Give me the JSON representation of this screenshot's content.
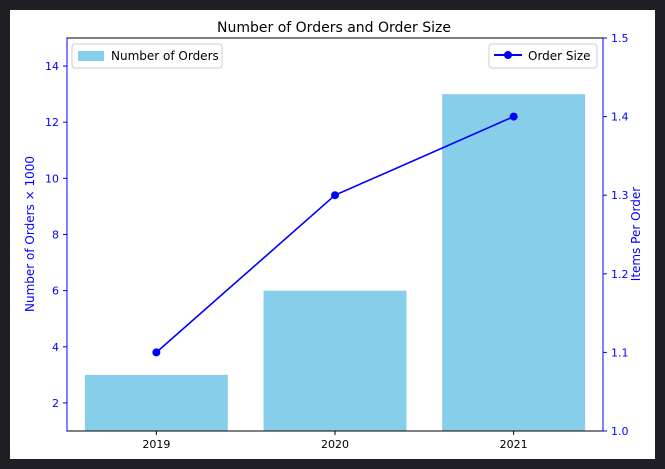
{
  "chart_data": {
    "type": "bar",
    "title": "Number of Orders and Order Size",
    "categories": [
      "2019",
      "2020",
      "2021"
    ],
    "series": [
      {
        "name": "Number of Orders",
        "type": "bar",
        "axis": "left",
        "color": "#87ceeb",
        "values": [
          3,
          6,
          13
        ]
      },
      {
        "name": "Order Size",
        "type": "line",
        "axis": "right",
        "color": "#0000ff",
        "marker": "circle",
        "values": [
          1.1,
          1.3,
          1.4
        ]
      }
    ],
    "ylabel": "Number of Orders × 1000",
    "ylim": [
      1,
      15
    ],
    "yticks": [
      "2",
      "4",
      "6",
      "8",
      "10",
      "12",
      "14"
    ],
    "y2label": "Items Per Order",
    "y2lim": [
      1.0,
      1.5
    ],
    "y2ticks": [
      "1.0",
      "1.1",
      "1.2",
      "1.3",
      "1.4",
      "1.5"
    ],
    "axis_label_color": "#0000ff",
    "grid": false,
    "legends": [
      {
        "entry": "Number of Orders",
        "placement": "top-left"
      },
      {
        "entry": "Order Size",
        "placement": "top-right"
      }
    ]
  }
}
